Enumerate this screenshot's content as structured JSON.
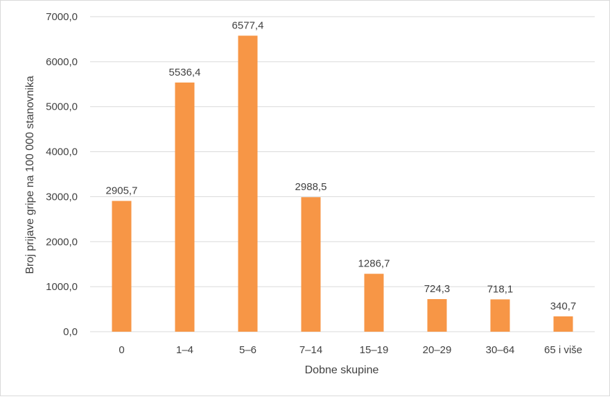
{
  "chart_data": {
    "type": "bar",
    "title": "",
    "xlabel": "Dobne skupine",
    "ylabel": "Broj prijave gripe na 100 000 stanovnika",
    "categories": [
      "0",
      "1–4",
      "5–6",
      "7–14",
      "15–19",
      "20–29",
      "30–64",
      "65 i više"
    ],
    "values": [
      2905.7,
      5536.4,
      6577.4,
      2988.5,
      1286.7,
      724.3,
      718.1,
      340.7
    ],
    "value_labels": [
      "2905,7",
      "5536,4",
      "6577,4",
      "2988,5",
      "1286,7",
      "724,3",
      "718,1",
      "340,7"
    ],
    "ylim": [
      0,
      7000
    ],
    "yticks": [
      0,
      1000,
      2000,
      3000,
      4000,
      5000,
      6000,
      7000
    ],
    "ytick_labels": [
      "0,0",
      "1000,0",
      "2000,0",
      "3000,0",
      "4000,0",
      "5000,0",
      "6000,0",
      "7000,0"
    ],
    "grid": true,
    "legend": false,
    "colors": {
      "bar": "#f79646",
      "grid": "#d9d9d9",
      "text": "#404040"
    }
  }
}
